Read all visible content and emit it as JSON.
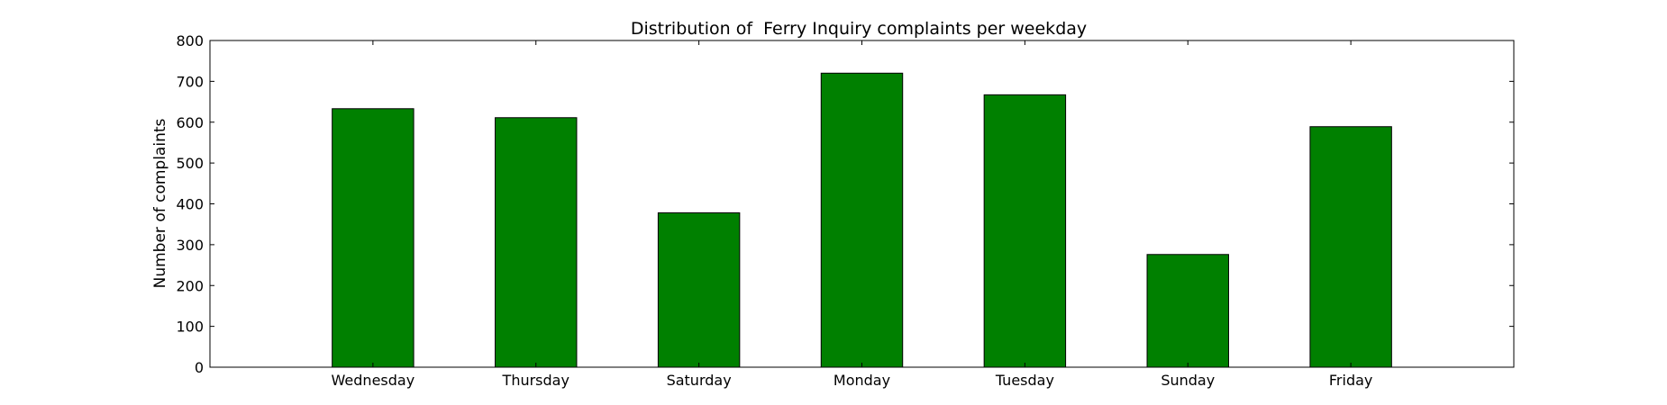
{
  "chart_data": {
    "type": "bar",
    "title": "Distribution of  Ferry Inquiry complaints per weekday",
    "xlabel": "",
    "ylabel": "Number of complaints",
    "categories": [
      "Wednesday",
      "Thursday",
      "Saturday",
      "Monday",
      "Tuesday",
      "Sunday",
      "Friday"
    ],
    "values": [
      633,
      611,
      378,
      720,
      667,
      276,
      589
    ],
    "ylim": [
      0,
      800
    ],
    "yticks": [
      0,
      100,
      200,
      300,
      400,
      500,
      600,
      700,
      800
    ],
    "bar_color": "#008000",
    "grid": false,
    "legend": "none"
  }
}
